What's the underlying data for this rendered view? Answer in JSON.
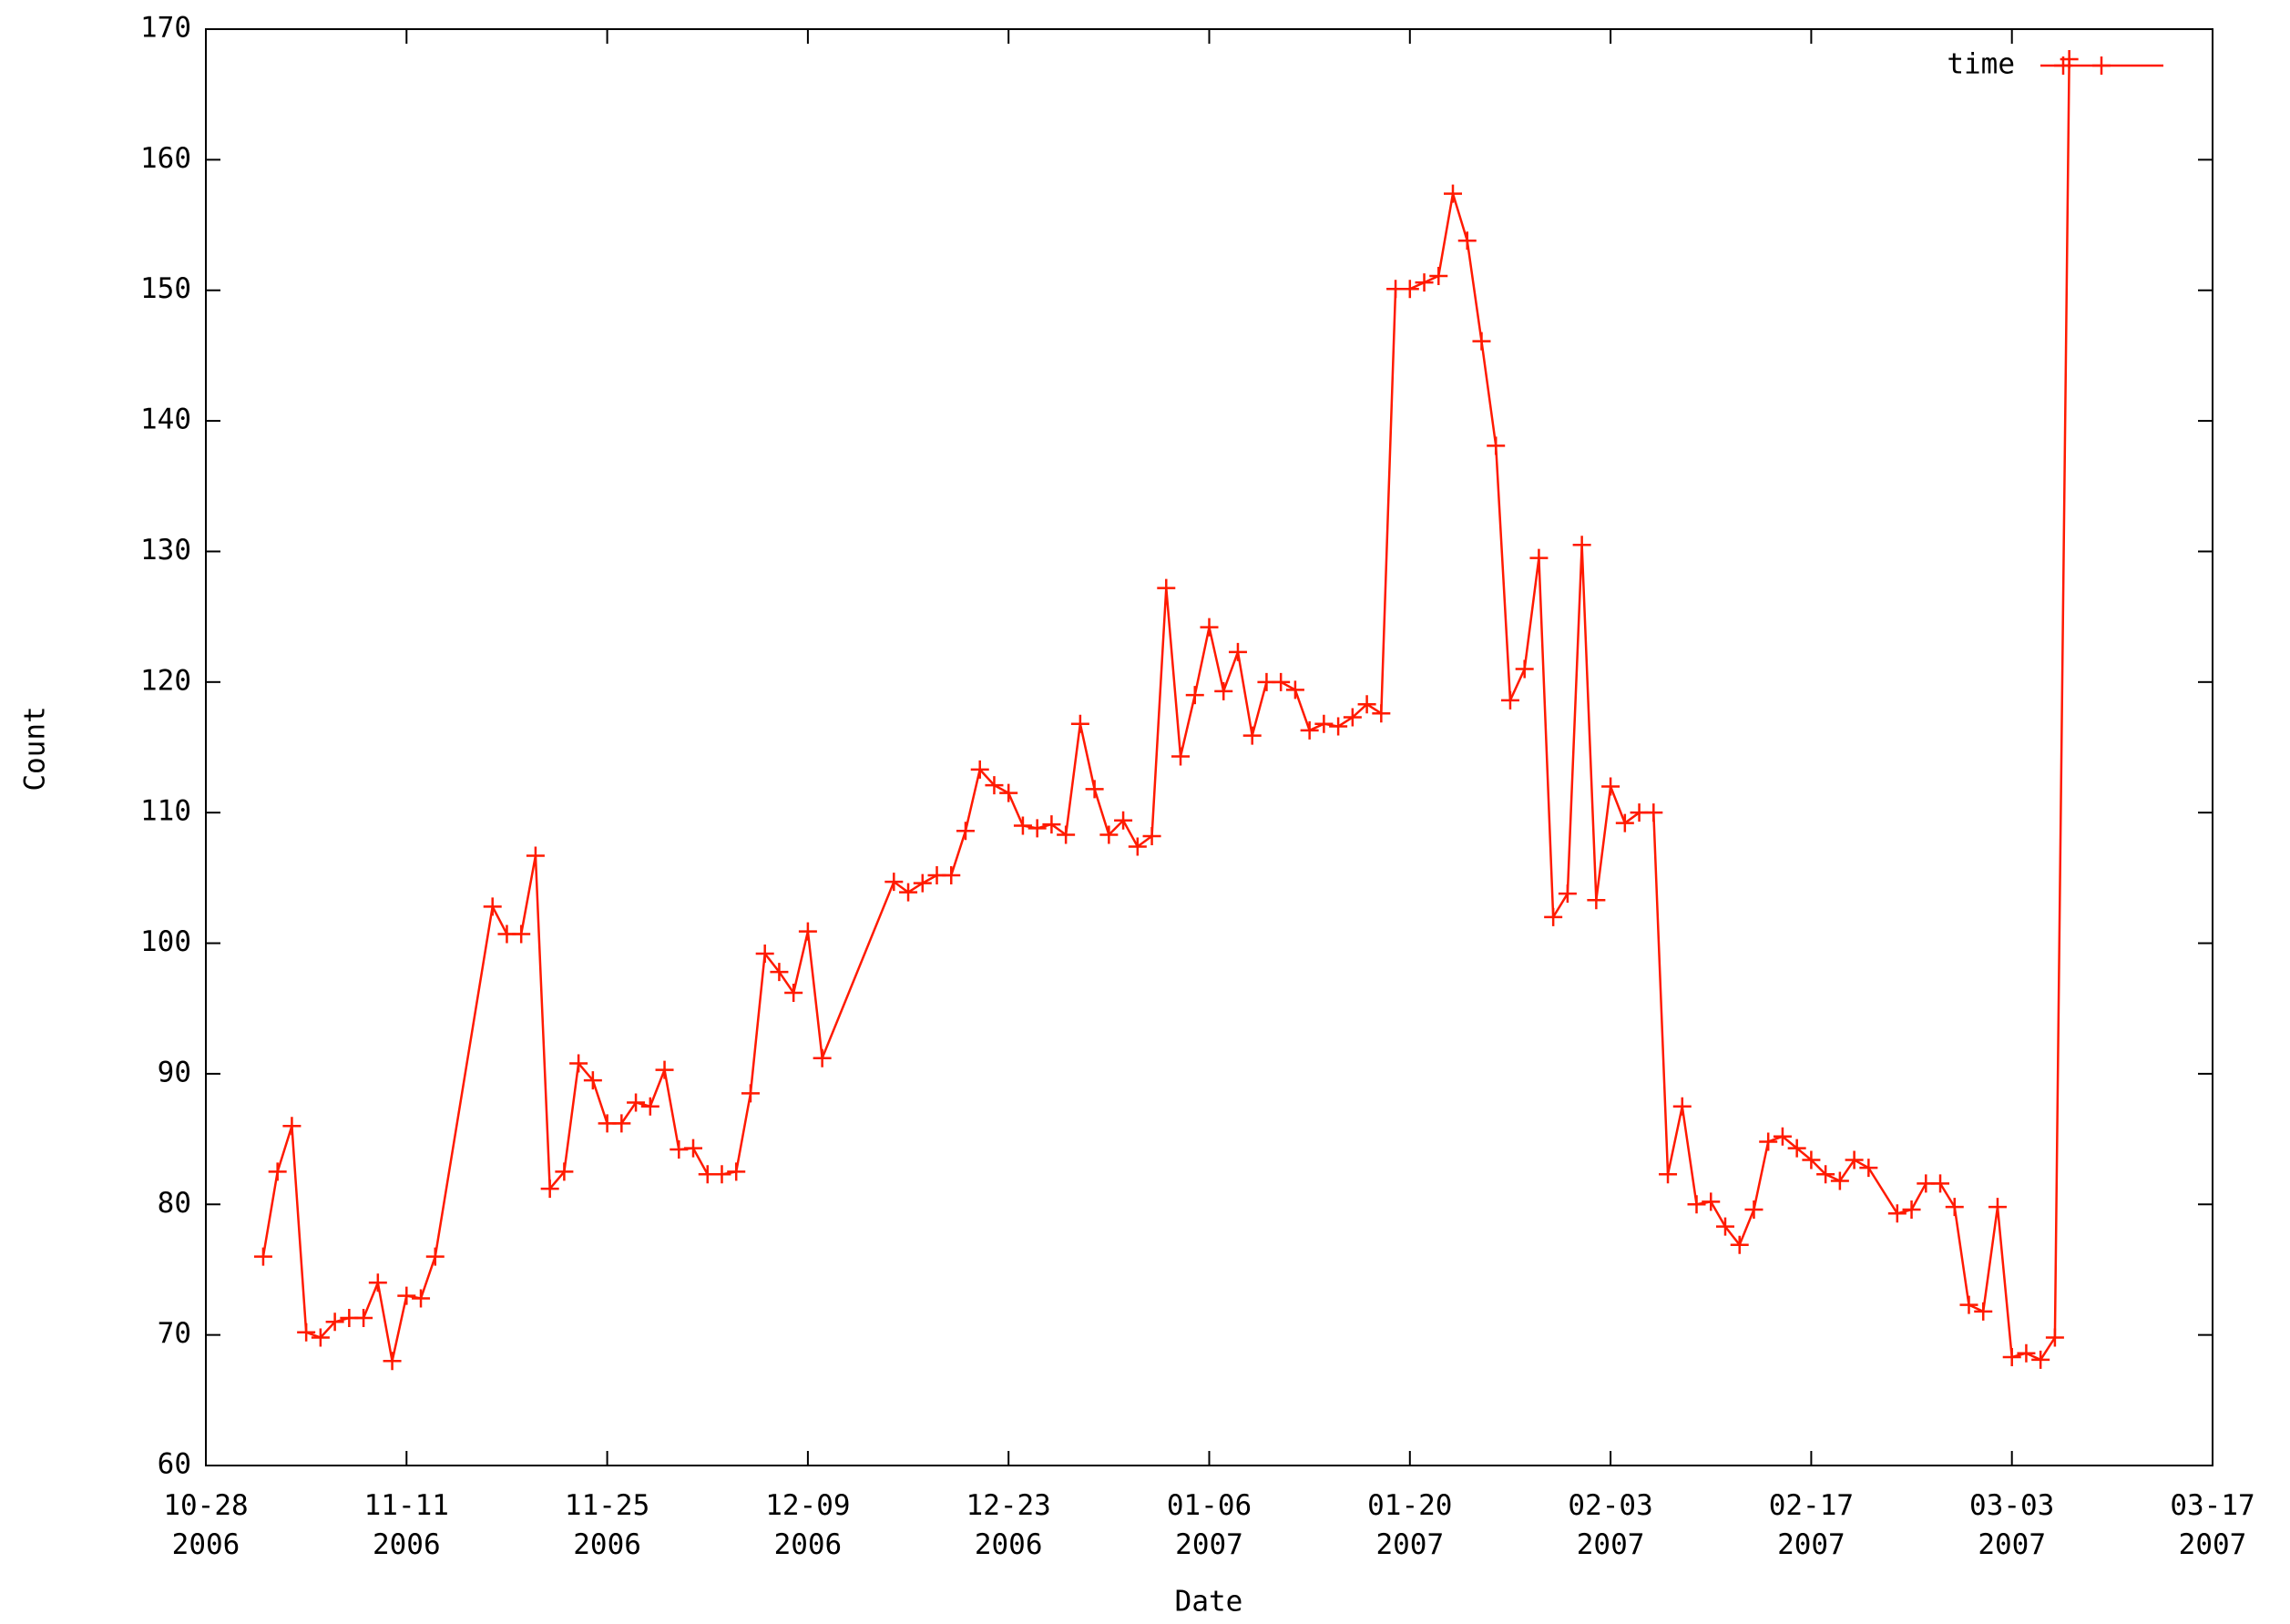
{
  "chart_data": {
    "type": "line",
    "xlabel": "Date",
    "ylabel": "Count",
    "x": [
      "2006-11-01",
      "2006-11-02",
      "2006-11-03",
      "2006-11-04",
      "2006-11-05",
      "2006-11-06",
      "2006-11-07",
      "2006-11-08",
      "2006-11-09",
      "2006-11-10",
      "2006-11-11",
      "2006-11-12",
      "2006-11-13",
      "2006-11-17",
      "2006-11-18",
      "2006-11-19",
      "2006-11-20",
      "2006-11-21",
      "2006-11-22",
      "2006-11-23",
      "2006-11-24",
      "2006-11-25",
      "2006-11-26",
      "2006-11-27",
      "2006-11-28",
      "2006-11-29",
      "2006-11-30",
      "2006-12-01",
      "2006-12-02",
      "2006-12-03",
      "2006-12-04",
      "2006-12-05",
      "2006-12-06",
      "2006-12-07",
      "2006-12-08",
      "2006-12-09",
      "2006-12-10",
      "2006-12-15",
      "2006-12-16",
      "2006-12-17",
      "2006-12-18",
      "2006-12-19",
      "2006-12-20",
      "2006-12-21",
      "2006-12-22",
      "2006-12-23",
      "2006-12-24",
      "2006-12-25",
      "2006-12-26",
      "2006-12-27",
      "2006-12-28",
      "2006-12-29",
      "2006-12-30",
      "2006-12-31",
      "2007-01-01",
      "2007-01-02",
      "2007-01-03",
      "2007-01-04",
      "2007-01-05",
      "2007-01-06",
      "2007-01-07",
      "2007-01-08",
      "2007-01-09",
      "2007-01-10",
      "2007-01-11",
      "2007-01-12",
      "2007-01-13",
      "2007-01-14",
      "2007-01-15",
      "2007-01-16",
      "2007-01-17",
      "2007-01-18",
      "2007-01-19",
      "2007-01-20",
      "2007-01-21",
      "2007-01-22",
      "2007-01-23",
      "2007-01-24",
      "2007-01-25",
      "2007-01-26",
      "2007-01-27",
      "2007-01-28",
      "2007-01-29",
      "2007-01-30",
      "2007-01-31",
      "2007-02-01",
      "2007-02-02",
      "2007-02-03",
      "2007-02-04",
      "2007-02-05",
      "2007-02-06",
      "2007-02-07",
      "2007-02-08",
      "2007-02-09",
      "2007-02-10",
      "2007-02-11",
      "2007-02-12",
      "2007-02-13",
      "2007-02-14",
      "2007-02-15",
      "2007-02-16",
      "2007-02-17",
      "2007-02-18",
      "2007-02-19",
      "2007-02-20",
      "2007-02-21",
      "2007-02-23",
      "2007-02-24",
      "2007-02-25",
      "2007-02-26",
      "2007-02-27",
      "2007-02-28",
      "2007-03-01",
      "2007-03-02",
      "2007-03-03",
      "2007-03-04",
      "2007-03-05",
      "2007-03-06",
      "2007-03-07"
    ],
    "series": [
      {
        "name": "time",
        "color": "#ff1a00",
        "values": [
          76,
          82.5,
          86,
          70.2,
          69.8,
          71,
          71.3,
          71.3,
          74,
          68,
          73,
          72.8,
          76,
          102.8,
          100.7,
          100.7,
          106.7,
          81.2,
          82.5,
          90.8,
          89.5,
          86.2,
          86.2,
          87.8,
          87.5,
          90.3,
          84.2,
          84.3,
          82.3,
          82.3,
          82.5,
          88.5,
          99.2,
          97.8,
          96.2,
          100.9,
          91.2,
          104.7,
          103.9,
          104.6,
          105.2,
          105.2,
          108.6,
          113.3,
          112.1,
          111.5,
          109,
          108.8,
          109.1,
          108.3,
          116.8,
          111.8,
          108.3,
          109.4,
          107.4,
          108.2,
          127.2,
          114.3,
          119,
          124.2,
          119.3,
          122.3,
          115.9,
          120,
          120,
          119.4,
          116.3,
          116.8,
          116.6,
          117.3,
          118.3,
          117.6,
          150.1,
          150.1,
          150.6,
          151.1,
          157.4,
          153.8,
          146.1,
          138.1,
          118.6,
          121,
          129.5,
          102,
          103.8,
          130.5,
          103.3,
          112,
          109.2,
          110,
          110,
          82.3,
          87.5,
          80,
          80.2,
          78.3,
          76.9,
          79.6,
          84.8,
          85.2,
          84.3,
          83.4,
          82.3,
          81.8,
          83.4,
          82.8,
          79.3,
          79.6,
          81.6,
          81.6,
          79.8,
          72.3,
          71.8,
          79.8,
          68.3,
          68.6,
          68.1,
          69.8,
          167.7
        ]
      }
    ],
    "xlim": [
      "2006-10-28",
      "2007-03-17"
    ],
    "xticks": [
      {
        "value": "2006-10-28",
        "label": "10-28\n2006"
      },
      {
        "value": "2006-11-11",
        "label": "11-11\n2006"
      },
      {
        "value": "2006-11-25",
        "label": "11-25\n2006"
      },
      {
        "value": "2006-12-09",
        "label": "12-09\n2006"
      },
      {
        "value": "2006-12-23",
        "label": "12-23\n2006"
      },
      {
        "value": "2007-01-06",
        "label": "01-06\n2007"
      },
      {
        "value": "2007-01-20",
        "label": "01-20\n2007"
      },
      {
        "value": "2007-02-03",
        "label": "02-03\n2007"
      },
      {
        "value": "2007-02-17",
        "label": "02-17\n2007"
      },
      {
        "value": "2007-03-03",
        "label": "03-03\n2007"
      },
      {
        "value": "2007-03-17",
        "label": "03-17\n2007"
      }
    ],
    "ylim": [
      60,
      170
    ],
    "yticks": [
      60,
      70,
      80,
      90,
      100,
      110,
      120,
      130,
      140,
      150,
      160,
      170
    ],
    "grid": false,
    "legend": "upper right"
  }
}
